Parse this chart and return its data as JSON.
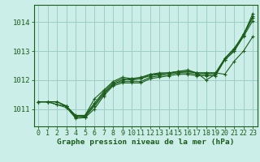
{
  "background_color": "#cceee8",
  "plot_bg_color": "#cceee8",
  "grid_color": "#9ecdc6",
  "line_color": "#1a5c1a",
  "xlabel": "Graphe pression niveau de la mer (hPa)",
  "xlabel_fontsize": 6.8,
  "ylabel_fontsize": 6.5,
  "tick_fontsize": 6.0,
  "ylim": [
    1010.4,
    1014.6
  ],
  "xlim": [
    -0.5,
    23.5
  ],
  "yticks": [
    1011,
    1012,
    1013,
    1014
  ],
  "xticks": [
    0,
    1,
    2,
    3,
    4,
    5,
    6,
    7,
    8,
    9,
    10,
    11,
    12,
    13,
    14,
    15,
    16,
    17,
    18,
    19,
    20,
    21,
    22,
    23
  ],
  "lines": [
    [
      1011.25,
      1011.25,
      1011.25,
      1011.1,
      1010.75,
      1010.75,
      1011.15,
      1011.55,
      1011.85,
      1012.0,
      1012.05,
      1012.1,
      1012.2,
      1012.25,
      1012.25,
      1012.25,
      1012.3,
      1012.25,
      1012.25,
      1012.25,
      1012.75,
      1013.1,
      1013.55,
      1014.3
    ],
    [
      1011.25,
      1011.25,
      1011.25,
      1011.1,
      1010.75,
      1010.78,
      1011.2,
      1011.6,
      1011.9,
      1012.05,
      1012.0,
      1012.05,
      1012.2,
      1012.2,
      1012.25,
      1012.3,
      1012.3,
      1012.25,
      1012.0,
      1012.2,
      1012.7,
      1013.0,
      1013.5,
      1014.05
    ],
    [
      1011.25,
      1011.25,
      1011.25,
      1011.1,
      1010.78,
      1010.78,
      1011.35,
      1011.65,
      1011.95,
      1012.1,
      1012.05,
      1012.05,
      1012.15,
      1012.2,
      1012.25,
      1012.3,
      1012.35,
      1012.25,
      1012.25,
      1012.25,
      1012.2,
      1012.65,
      1013.0,
      1013.5
    ],
    [
      1011.25,
      1011.25,
      1011.15,
      1011.1,
      1010.7,
      1010.72,
      1011.1,
      1011.5,
      1011.85,
      1011.95,
      1011.95,
      1011.95,
      1012.1,
      1012.15,
      1012.2,
      1012.25,
      1012.25,
      1012.2,
      1012.2,
      1012.2,
      1012.75,
      1013.05,
      1013.6,
      1014.2
    ],
    [
      1011.25,
      1011.25,
      1011.15,
      1011.05,
      1010.68,
      1010.7,
      1011.0,
      1011.45,
      1011.8,
      1011.9,
      1011.9,
      1011.9,
      1012.05,
      1012.1,
      1012.15,
      1012.2,
      1012.2,
      1012.15,
      1012.15,
      1012.15,
      1012.7,
      1013.0,
      1013.55,
      1014.15
    ]
  ]
}
